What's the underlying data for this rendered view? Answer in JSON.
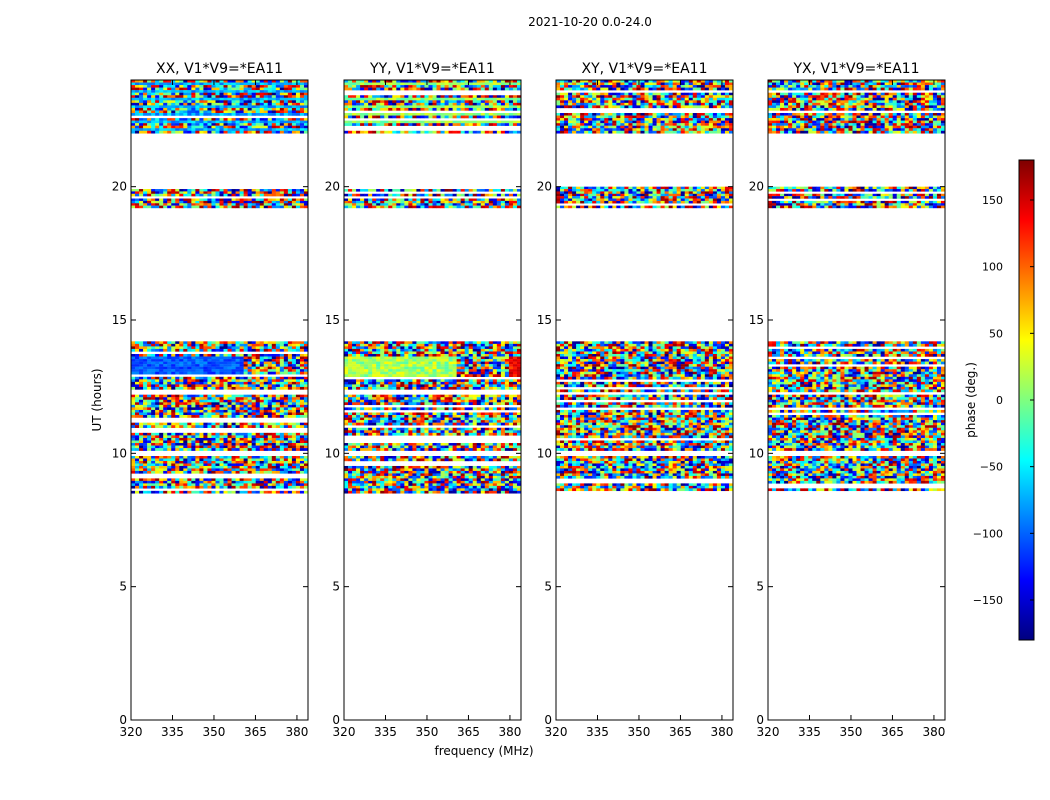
{
  "chart_data": {
    "type": "heatmap",
    "title": "2021-10-20 0.0-24.0",
    "xlabel": "frequency (MHz)",
    "ylabel": "UT (hours)",
    "xlim": [
      320,
      384
    ],
    "ylim": [
      0,
      24
    ],
    "x_ticks": [
      "320",
      "335",
      "350",
      "365",
      "380"
    ],
    "y_ticks": [
      "0",
      "5",
      "10",
      "15",
      "20"
    ],
    "colorbar": {
      "label": "phase (deg.)",
      "range": [
        -180,
        180
      ],
      "ticks": [
        "150",
        "100",
        "50",
        "0",
        "−50",
        "−100",
        "−150"
      ],
      "colormap": "jet",
      "colors": [
        "#00007f",
        "#0000ff",
        "#007fff",
        "#00ffff",
        "#7fff7f",
        "#ffff00",
        "#ff7f00",
        "#ff0000",
        "#7f0000"
      ]
    },
    "data_bands_ut": [
      [
        8.5,
        9.9
      ],
      [
        10.1,
        12.2
      ],
      [
        12.3,
        14.2
      ],
      [
        19.2,
        20.0
      ],
      [
        22.0,
        24.0
      ]
    ],
    "panels": [
      {
        "title": "XX, V1*V9=*EA11",
        "polarization": "XX"
      },
      {
        "title": "YY, V1*V9=*EA11",
        "polarization": "YY"
      },
      {
        "title": "XY, V1*V9=*EA11",
        "polarization": "XY"
      },
      {
        "title": "YX, V1*V9=*EA11",
        "polarization": "YX"
      }
    ]
  }
}
